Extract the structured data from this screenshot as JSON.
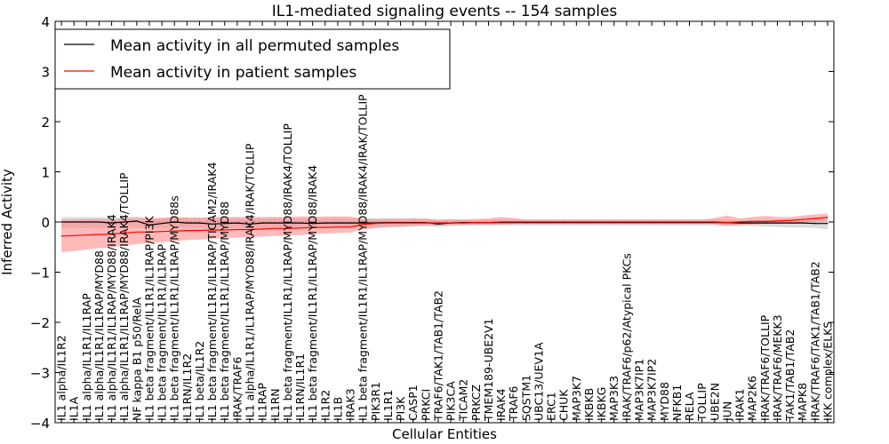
{
  "chart_data": {
    "type": "line",
    "title": "IL1-mediated signaling events -- 154 samples",
    "xlabel": "Cellular Entities",
    "ylabel": "Inferred Activity",
    "ylim": [
      -4,
      4
    ],
    "yticks": [
      -4,
      -3,
      -2,
      -1,
      0,
      1,
      2,
      3,
      4
    ],
    "ytick_labels": [
      "−4",
      "−3",
      "−2",
      "−1",
      "0",
      "1",
      "2",
      "3",
      "4"
    ],
    "grid": false,
    "legend_position": "top-left",
    "categories": [
      "IL1 alpha/IL1R2",
      "IL1A",
      "IL1 alpha/IL1R1/IL1RAP",
      "IL1 alpha/IL1R1/IL1RAP/MYD88",
      "IL1 alpha/IL1R1/IL1RAP/MYD88/IRAK4",
      "IL1 alpha/IL1R1/IL1RAP/MYD88/IRAK4/TOLLIP",
      "NF kappa B1 p50/RelA",
      "IL1 beta fragment/IL1R1/IL1RAP/PI3K",
      "IL1 beta fragment/IL1R1/IL1RAP",
      "IL1 beta fragment/IL1R1/IL1RAP/MYD88s",
      "IL1RN/IL1R2",
      "IL1 beta/IL1R2",
      "IL1 beta fragment/IL1R1/IL1RAP/TICAM2/IRAK4",
      "IL1 beta fragment/IL1R1/IL1RAP/MYD88",
      "IRAK/TRAF6",
      "IL1 alpha/IL1R1/IL1RAP/MYD88/IRAK4/IRAK/TOLLIP",
      "IL1RAP",
      "IL1RN",
      "IL1 beta fragment/IL1R1/IL1RAP/MYD88/IRAK4/TOLLIP",
      "IL1RN/IL1R1",
      "IL1 beta fragment/IL1R1/IL1RAP/MYD88/IRAK4",
      "IL1R2",
      "IL1B",
      "IRAK3",
      "IL1 beta fragment/IL1R1/IL1RAP/MYD88/IRAK4/IRAK/TOLLIP",
      "PIK3R1",
      "IL1R1",
      "PI3K",
      "CASP1",
      "PRKCI",
      "TRAF6/TAK1/TAB1/TAB2",
      "PIK3CA",
      "TICAM2",
      "PRKCZ",
      "TMEM189-UBE2V1",
      "IRAK4",
      "TRAF6",
      "SQSTM1",
      "UBC13/UEV1A",
      "ERC1",
      "CHUK",
      "MAP3K7",
      "IKBKB",
      "IKBKG",
      "MAP3K3",
      "IRAK/TRAF6/p62/Atypical PKCs",
      "MAP3K7IP1",
      "MAP3K7IP2",
      "MYD88",
      "NFKB1",
      "RELA",
      "TOLLIP",
      "UBE2N",
      "JUN",
      "IRAK1",
      "MAP2K6",
      "IRAK/TRAF6/TOLLIP",
      "IRAK/TRAF6/MEKK3",
      "TAK1/TAB1/TAB2",
      "MAPK8",
      "IRAK/TRAF6/TAK1/TAB1/TAB2",
      "IKK complex/ELKS"
    ],
    "series": [
      {
        "name": "Mean activity in all permuted samples",
        "color": "#000000",
        "values": [
          0.0,
          0.0,
          0.0,
          0.0,
          -0.02,
          0.0,
          0.02,
          -0.06,
          -0.03,
          0.0,
          -0.02,
          -0.02,
          -0.04,
          -0.03,
          -0.02,
          -0.04,
          -0.02,
          -0.02,
          -0.02,
          -0.02,
          -0.03,
          -0.02,
          -0.02,
          -0.02,
          -0.02,
          -0.02,
          -0.01,
          -0.01,
          -0.01,
          -0.01,
          -0.04,
          -0.02,
          -0.01,
          -0.01,
          -0.01,
          -0.01,
          -0.01,
          -0.01,
          -0.01,
          -0.01,
          -0.01,
          -0.01,
          -0.01,
          -0.01,
          -0.01,
          -0.01,
          -0.01,
          -0.01,
          -0.01,
          -0.01,
          -0.01,
          -0.01,
          -0.01,
          -0.01,
          -0.02,
          -0.02,
          -0.02,
          -0.02,
          -0.02,
          -0.02,
          -0.03,
          -0.03
        ],
        "band_color": "#bbbbbb",
        "lower": [
          -0.12,
          -0.12,
          -0.12,
          -0.12,
          -0.12,
          -0.12,
          -0.12,
          -0.13,
          -0.12,
          -0.12,
          -0.12,
          -0.12,
          -0.12,
          -0.12,
          -0.12,
          -0.12,
          -0.12,
          -0.12,
          -0.12,
          -0.12,
          -0.12,
          -0.12,
          -0.12,
          -0.12,
          -0.11,
          -0.11,
          -0.1,
          -0.1,
          -0.09,
          -0.08,
          -0.1,
          -0.08,
          -0.07,
          -0.07,
          -0.07,
          -0.07,
          -0.07,
          -0.07,
          -0.07,
          -0.07,
          -0.07,
          -0.07,
          -0.07,
          -0.07,
          -0.07,
          -0.07,
          -0.07,
          -0.07,
          -0.07,
          -0.07,
          -0.07,
          -0.07,
          -0.07,
          -0.07,
          -0.08,
          -0.08,
          -0.09,
          -0.1,
          -0.11,
          -0.11,
          -0.12,
          -0.15
        ],
        "upper": [
          0.1,
          0.1,
          0.1,
          0.1,
          0.08,
          0.1,
          0.11,
          0.06,
          0.08,
          0.1,
          0.08,
          0.08,
          0.07,
          0.08,
          0.08,
          0.07,
          0.08,
          0.08,
          0.08,
          0.08,
          0.07,
          0.08,
          0.08,
          0.08,
          0.08,
          0.08,
          0.08,
          0.08,
          0.07,
          0.06,
          0.03,
          0.05,
          0.05,
          0.05,
          0.05,
          0.05,
          0.05,
          0.05,
          0.05,
          0.05,
          0.05,
          0.05,
          0.05,
          0.05,
          0.05,
          0.05,
          0.05,
          0.05,
          0.05,
          0.05,
          0.05,
          0.05,
          0.05,
          0.05,
          0.04,
          0.04,
          0.04,
          0.05,
          0.06,
          0.06,
          0.06,
          0.06
        ]
      },
      {
        "name": "Mean activity in patient samples",
        "color": "#ff0000",
        "values": [
          -0.28,
          -0.27,
          -0.26,
          -0.25,
          -0.24,
          -0.22,
          -0.2,
          -0.2,
          -0.19,
          -0.18,
          -0.17,
          -0.17,
          -0.16,
          -0.16,
          -0.15,
          -0.15,
          -0.14,
          -0.13,
          -0.13,
          -0.12,
          -0.11,
          -0.11,
          -0.1,
          -0.1,
          -0.05,
          -0.03,
          -0.02,
          -0.02,
          -0.02,
          -0.02,
          -0.02,
          -0.02,
          -0.02,
          -0.01,
          -0.01,
          0.0,
          0.0,
          0.0,
          0.0,
          0.0,
          0.0,
          0.0,
          0.0,
          0.0,
          0.0,
          0.0,
          0.0,
          0.0,
          0.0,
          0.0,
          0.0,
          0.0,
          0.0,
          -0.01,
          0.0,
          0.01,
          0.01,
          0.02,
          0.03,
          0.05,
          0.07,
          0.09
        ],
        "band_color": "#ff8080",
        "lower": [
          -0.6,
          -0.58,
          -0.55,
          -0.52,
          -0.5,
          -0.47,
          -0.44,
          -0.42,
          -0.4,
          -0.38,
          -0.36,
          -0.35,
          -0.33,
          -0.32,
          -0.31,
          -0.3,
          -0.29,
          -0.28,
          -0.27,
          -0.26,
          -0.24,
          -0.23,
          -0.22,
          -0.21,
          -0.15,
          -0.12,
          -0.1,
          -0.09,
          -0.08,
          -0.07,
          -0.07,
          -0.06,
          -0.06,
          -0.05,
          -0.05,
          -0.05,
          -0.04,
          -0.04,
          -0.04,
          -0.04,
          -0.04,
          -0.04,
          -0.04,
          -0.04,
          -0.04,
          -0.04,
          -0.04,
          -0.04,
          -0.04,
          -0.04,
          -0.04,
          -0.04,
          -0.04,
          -0.08,
          -0.06,
          -0.05,
          -0.04,
          -0.03,
          -0.02,
          -0.01,
          0.0,
          0.01
        ],
        "upper": [
          0.05,
          0.05,
          0.06,
          0.06,
          0.06,
          0.07,
          0.08,
          0.08,
          0.08,
          0.09,
          0.09,
          0.09,
          0.1,
          0.1,
          0.1,
          0.1,
          0.1,
          0.1,
          0.1,
          0.11,
          0.11,
          0.11,
          0.11,
          0.11,
          0.06,
          0.05,
          0.06,
          0.06,
          0.07,
          0.07,
          0.05,
          0.06,
          0.05,
          0.06,
          0.07,
          0.1,
          0.08,
          0.05,
          0.05,
          0.05,
          0.05,
          0.05,
          0.05,
          0.05,
          0.05,
          0.05,
          0.05,
          0.05,
          0.05,
          0.05,
          0.05,
          0.05,
          0.08,
          0.13,
          0.07,
          0.1,
          0.12,
          0.1,
          0.1,
          0.13,
          0.15,
          0.17
        ]
      }
    ]
  }
}
